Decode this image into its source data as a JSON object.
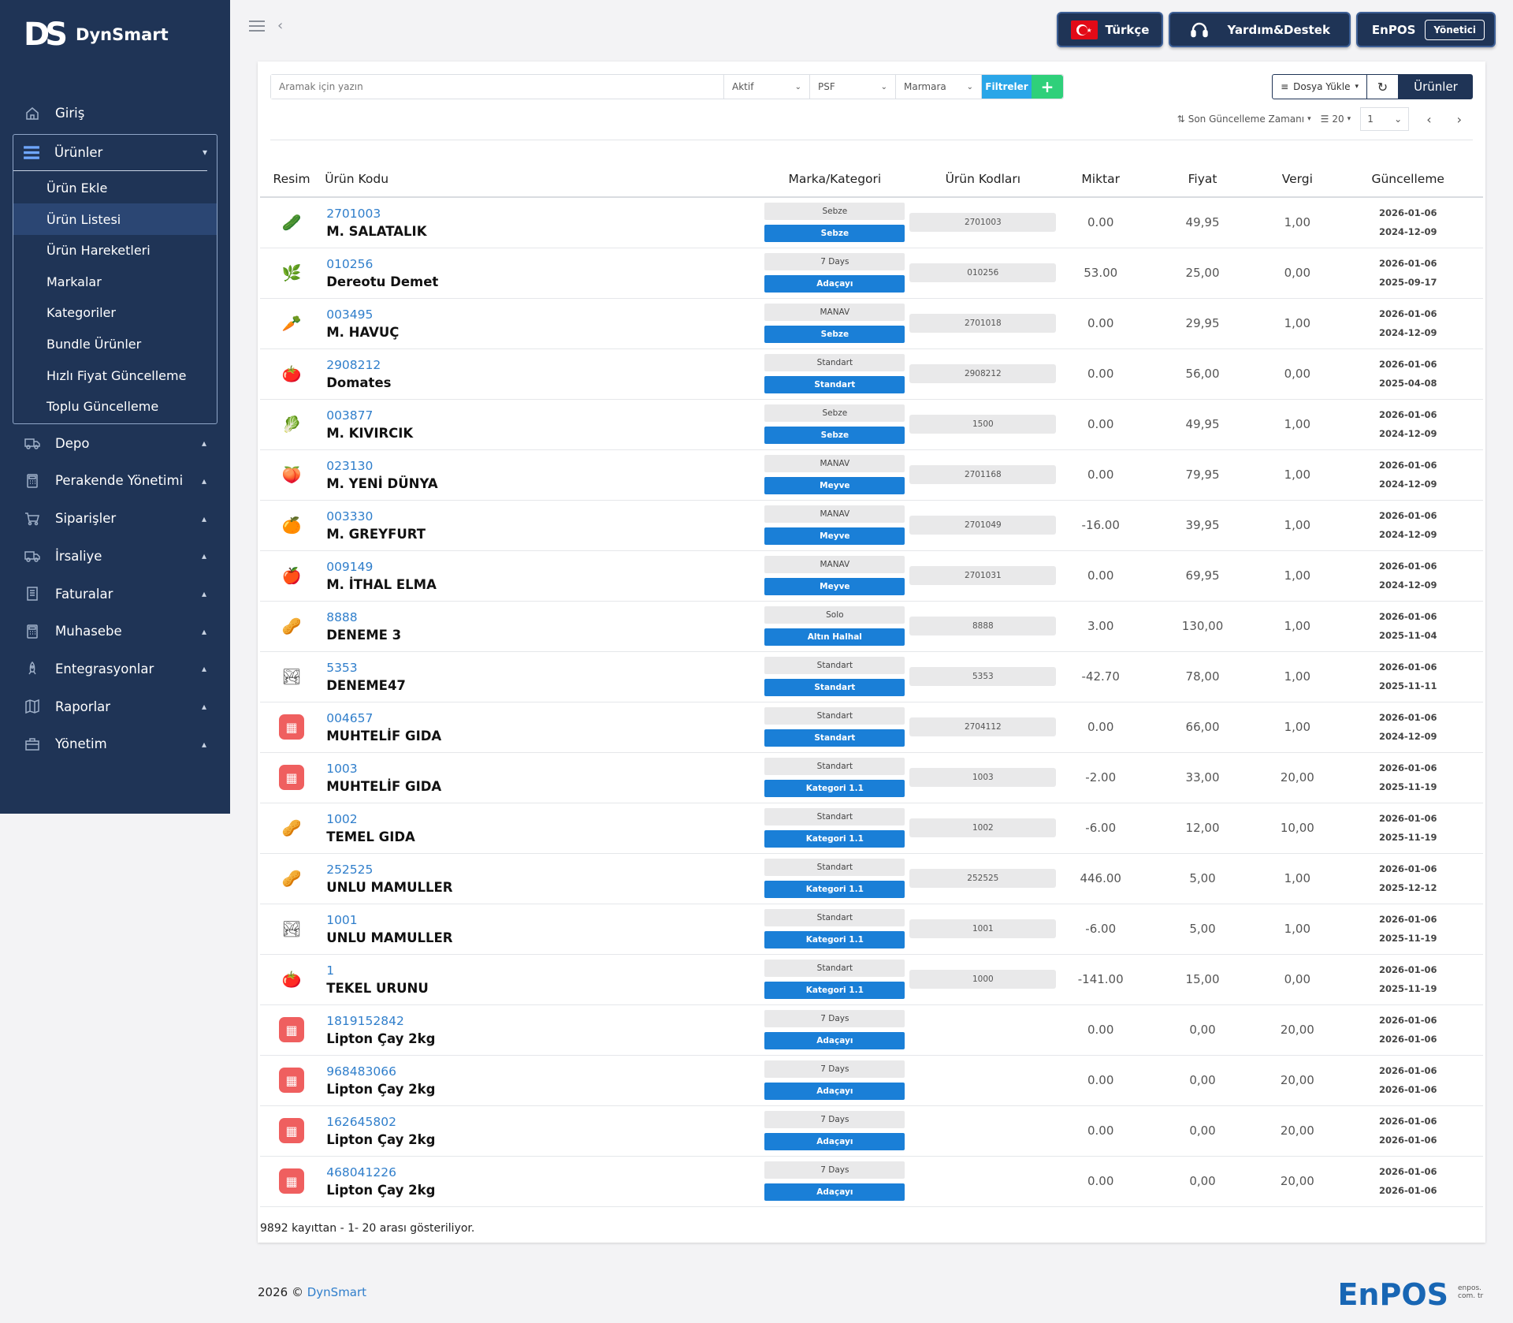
{
  "brand": {
    "name": "DynSmart",
    "mark": "DS"
  },
  "sidebar": {
    "top": [
      {
        "label": "Giriş",
        "icon": "home-icon"
      }
    ],
    "group": {
      "label": "Ürünler",
      "icon": "list-icon",
      "items": [
        "Ürün Ekle",
        "Ürün Listesi",
        "Ürün Hareketleri",
        "Markalar",
        "Kategoriler",
        "Bundle Ürünler",
        "Hızlı Fiyat Güncelleme",
        "Toplu Güncelleme"
      ],
      "active": "Ürün Listesi"
    },
    "items": [
      {
        "label": "Depo",
        "icon": "truck-icon"
      },
      {
        "label": "Perakende Yönetimi",
        "icon": "calculator-icon"
      },
      {
        "label": "Siparişler",
        "icon": "cart-icon"
      },
      {
        "label": "İrsaliye",
        "icon": "truck-icon"
      },
      {
        "label": "Faturalar",
        "icon": "document-icon"
      },
      {
        "label": "Muhasebe",
        "icon": "calculator-icon"
      },
      {
        "label": "Entegrasyonlar",
        "icon": "rocket-icon"
      },
      {
        "label": "Raporlar",
        "icon": "map-icon"
      },
      {
        "label": "Yönetim",
        "icon": "briefcase-icon"
      }
    ]
  },
  "topbar": {
    "language": "Türkçe",
    "flag_star": "★",
    "support": "Yardım&Destek",
    "account": "EnPOS",
    "role": "Yönetici"
  },
  "filters": {
    "search_placeholder": "Aramak için yazın",
    "status": "Aktif",
    "price_type": "PSF",
    "store": "Marmara",
    "filter_btn": "Filtreler",
    "add_btn": "+",
    "upload": "Dosya Yükle",
    "products_btn": "Ürünler",
    "sort": "Son Güncelleme Zamanı",
    "per_page": "20",
    "page": "1"
  },
  "table": {
    "headers": [
      "Resim",
      "Ürün Kodu",
      "Marka/Kategori",
      "Ürün Kodları",
      "Miktar",
      "Fiyat",
      "Vergi",
      "Güncelleme"
    ],
    "rows": [
      {
        "img": "🥒",
        "code": "2701003",
        "name": "M. SALATALIK",
        "brand": "Sebze",
        "category": "Sebze",
        "codes": "2701003",
        "qty": "0.00",
        "price": "49,95",
        "tax": "1,00",
        "upd1": "2026-01-06",
        "upd2": "2024-12-09"
      },
      {
        "img": "🌿",
        "code": "010256",
        "name": "Dereotu Demet",
        "brand": "7 Days",
        "category": "Adaçayı",
        "codes": "010256",
        "qty": "53.00",
        "price": "25,00",
        "tax": "0,00",
        "upd1": "2026-01-06",
        "upd2": "2025-09-17"
      },
      {
        "img": "🥕",
        "code": "003495",
        "name": "M. HAVUÇ",
        "brand": "MANAV",
        "category": "Sebze",
        "codes": "2701018",
        "qty": "0.00",
        "price": "29,95",
        "tax": "1,00",
        "upd1": "2026-01-06",
        "upd2": "2024-12-09"
      },
      {
        "img": "🍅",
        "code": "2908212",
        "name": "Domates",
        "brand": "Standart",
        "category": "Standart",
        "codes": "2908212",
        "qty": "0.00",
        "price": "56,00",
        "tax": "0,00",
        "upd1": "2026-01-06",
        "upd2": "2025-04-08"
      },
      {
        "img": "🥬",
        "code": "003877",
        "name": "M. KIVIRCIK",
        "brand": "Sebze",
        "category": "Sebze",
        "codes": "1500",
        "qty": "0.00",
        "price": "49,95",
        "tax": "1,00",
        "upd1": "2026-01-06",
        "upd2": "2024-12-09"
      },
      {
        "img": "🍑",
        "code": "023130",
        "name": "M. YENİ DÜNYA",
        "brand": "MANAV",
        "category": "Meyve",
        "codes": "2701168",
        "qty": "0.00",
        "price": "79,95",
        "tax": "1,00",
        "upd1": "2026-01-06",
        "upd2": "2024-12-09"
      },
      {
        "img": "🍊",
        "code": "003330",
        "name": "M. GREYFURT",
        "brand": "MANAV",
        "category": "Meyve",
        "codes": "2701049",
        "qty": "-16.00",
        "price": "39,95",
        "tax": "1,00",
        "upd1": "2026-01-06",
        "upd2": "2024-12-09"
      },
      {
        "img": "🍎",
        "code": "009149",
        "name": "M. İTHAL ELMA",
        "brand": "MANAV",
        "category": "Meyve",
        "codes": "2701031",
        "qty": "0.00",
        "price": "69,95",
        "tax": "1,00",
        "upd1": "2026-01-06",
        "upd2": "2024-12-09"
      },
      {
        "img": "🥜",
        "code": "8888",
        "name": "DENEME 3",
        "brand": "Solo",
        "category": "Altın Halhal",
        "codes": "8888",
        "qty": "3.00",
        "price": "130,00",
        "tax": "1,00",
        "upd1": "2026-01-06",
        "upd2": "2025-11-04"
      },
      {
        "img": "🏞",
        "code": "5353",
        "name": "DENEME47",
        "brand": "Standart",
        "category": "Standart",
        "codes": "5353",
        "qty": "-42.70",
        "price": "78,00",
        "tax": "1,00",
        "upd1": "2026-01-06",
        "upd2": "2025-11-11"
      },
      {
        "img": "placeholder",
        "code": "004657",
        "name": "MUHTELİF GIDA",
        "brand": "Standart",
        "category": "Standart",
        "codes": "2704112",
        "qty": "0.00",
        "price": "66,00",
        "tax": "1,00",
        "upd1": "2026-01-06",
        "upd2": "2024-12-09"
      },
      {
        "img": "placeholder",
        "code": "1003",
        "name": "MUHTELİF GIDA",
        "brand": "Standart",
        "category": "Kategori 1.1",
        "codes": "1003",
        "qty": "-2.00",
        "price": "33,00",
        "tax": "20,00",
        "upd1": "2026-01-06",
        "upd2": "2025-11-19"
      },
      {
        "img": "🥜",
        "code": "1002",
        "name": "TEMEL GIDA",
        "brand": "Standart",
        "category": "Kategori 1.1",
        "codes": "1002",
        "qty": "-6.00",
        "price": "12,00",
        "tax": "10,00",
        "upd1": "2026-01-06",
        "upd2": "2025-11-19"
      },
      {
        "img": "🥜",
        "code": "252525",
        "name": "UNLU MAMULLER",
        "brand": "Standart",
        "category": "Kategori 1.1",
        "codes": "252525",
        "qty": "446.00",
        "price": "5,00",
        "tax": "1,00",
        "upd1": "2026-01-06",
        "upd2": "2025-12-12"
      },
      {
        "img": "🏞",
        "code": "1001",
        "name": "UNLU MAMULLER",
        "brand": "Standart",
        "category": "Kategori 1.1",
        "codes": "1001",
        "qty": "-6.00",
        "price": "5,00",
        "tax": "1,00",
        "upd1": "2026-01-06",
        "upd2": "2025-11-19"
      },
      {
        "img": "🍅",
        "code": "1",
        "name": "TEKEL URUNU",
        "brand": "Standart",
        "category": "Kategori 1.1",
        "codes": "1000",
        "qty": "-141.00",
        "price": "15,00",
        "tax": "0,00",
        "upd1": "2026-01-06",
        "upd2": "2025-11-19"
      },
      {
        "img": "placeholder",
        "code": "1819152842",
        "name": "Lipton Çay 2kg",
        "brand": "7 Days",
        "category": "Adaçayı",
        "codes": "",
        "qty": "0.00",
        "price": "0,00",
        "tax": "20,00",
        "upd1": "2026-01-06",
        "upd2": "2026-01-06"
      },
      {
        "img": "placeholder",
        "code": "968483066",
        "name": "Lipton Çay 2kg",
        "brand": "7 Days",
        "category": "Adaçayı",
        "codes": "",
        "qty": "0.00",
        "price": "0,00",
        "tax": "20,00",
        "upd1": "2026-01-06",
        "upd2": "2026-01-06"
      },
      {
        "img": "placeholder",
        "code": "162645802",
        "name": "Lipton Çay 2kg",
        "brand": "7 Days",
        "category": "Adaçayı",
        "codes": "",
        "qty": "0.00",
        "price": "0,00",
        "tax": "20,00",
        "upd1": "2026-01-06",
        "upd2": "2026-01-06"
      },
      {
        "img": "placeholder",
        "code": "468041226",
        "name": "Lipton Çay 2kg",
        "brand": "7 Days",
        "category": "Adaçayı",
        "codes": "",
        "qty": "0.00",
        "price": "0,00",
        "tax": "20,00",
        "upd1": "2026-01-06",
        "upd2": "2026-01-06"
      }
    ],
    "summary": "9892 kayıttan - 1- 20 arası gösteriliyor."
  },
  "footer": {
    "year": "2026 ©",
    "link": "DynSmart",
    "logo": "EnPOS",
    "logo_small": "enpos. com. tr"
  },
  "colors": {
    "sidebar": "#1f3456",
    "accent": "#1a7fd7",
    "add": "#2fd07a",
    "filter": "#2aa6e8"
  }
}
